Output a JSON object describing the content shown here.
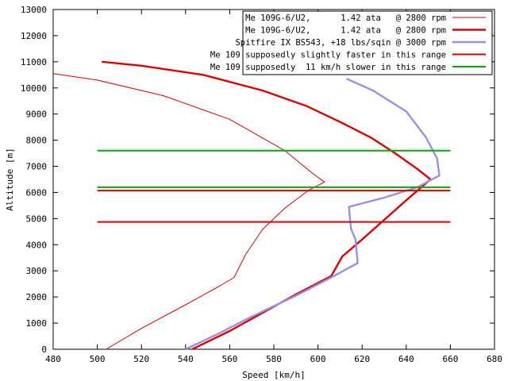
{
  "chart_data": {
    "type": "line",
    "title": "",
    "xlabel": "Speed [km/h]",
    "ylabel": "Altitude [m]",
    "xlim": [
      480,
      680
    ],
    "ylim": [
      0,
      13000
    ],
    "xticks": [
      480,
      500,
      520,
      540,
      560,
      580,
      600,
      620,
      640,
      660,
      680
    ],
    "yticks": [
      0,
      1000,
      2000,
      3000,
      4000,
      5000,
      6000,
      7000,
      8000,
      9000,
      10000,
      11000,
      12000,
      13000
    ],
    "grid": false,
    "legend_position": "top-right",
    "series": [
      {
        "name": "Me 109G-6/U2,      1.42 ata   @ 2800 rpm",
        "color": "#dd0000",
        "width": 1,
        "points": [
          [
            504,
            0
          ],
          [
            520,
            800
          ],
          [
            540,
            1700
          ],
          [
            555,
            2400
          ],
          [
            562,
            2750
          ],
          [
            567,
            3600
          ],
          [
            575,
            4600
          ],
          [
            585,
            5400
          ],
          [
            596,
            6100
          ],
          [
            603,
            6400
          ],
          [
            598,
            6700
          ],
          [
            585,
            7600
          ],
          [
            560,
            8800
          ],
          [
            530,
            9700
          ],
          [
            500,
            10300
          ],
          [
            480,
            10550
          ]
        ]
      },
      {
        "name": "Me 109G-6/U2,      1.42 ata   @ 2800 rpm",
        "color": "#dd0000",
        "width": 2.4,
        "points": [
          [
            543,
            0
          ],
          [
            560,
            700
          ],
          [
            575,
            1400
          ],
          [
            590,
            2100
          ],
          [
            606,
            2800
          ],
          [
            611,
            3550
          ],
          [
            620,
            4200
          ],
          [
            628,
            4800
          ],
          [
            640,
            5700
          ],
          [
            651,
            6500
          ],
          [
            645,
            6900
          ],
          [
            635,
            7500
          ],
          [
            624,
            8100
          ],
          [
            610,
            8700
          ],
          [
            595,
            9300
          ],
          [
            575,
            9900
          ],
          [
            548,
            10500
          ],
          [
            520,
            10850
          ],
          [
            502,
            11000
          ]
        ]
      },
      {
        "name": "Spitfire IX BS543, +18 lbs/sqin @ 3000 rpm",
        "color": "#9a8fe6",
        "width": 2.4,
        "points": [
          [
            540,
            0
          ],
          [
            555,
            600
          ],
          [
            570,
            1250
          ],
          [
            590,
            2050
          ],
          [
            605,
            2700
          ],
          [
            618,
            3300
          ],
          [
            617,
            4200
          ],
          [
            615,
            4600
          ],
          [
            614,
            5450
          ],
          [
            630,
            5800
          ],
          [
            645,
            6200
          ],
          [
            655,
            6650
          ],
          [
            654,
            7300
          ],
          [
            649,
            8100
          ],
          [
            640,
            9100
          ],
          [
            625,
            9900
          ],
          [
            613,
            10350
          ]
        ]
      },
      {
        "name": "Me 109 supposedly slightly faster in this range",
        "color": "#dd0000",
        "width": 2,
        "segments": [
          [
            [
              500,
              4870
            ],
            [
              660,
              4870
            ]
          ],
          [
            [
              500,
              6070
            ],
            [
              660,
              6070
            ]
          ]
        ]
      },
      {
        "name": "Me 109 supposedly  11 km/h slower in this range",
        "color": "#00aa00",
        "width": 2,
        "segments": [
          [
            [
              500,
              6200
            ],
            [
              660,
              6200
            ]
          ],
          [
            [
              500,
              7600
            ],
            [
              660,
              7600
            ]
          ]
        ]
      }
    ]
  }
}
